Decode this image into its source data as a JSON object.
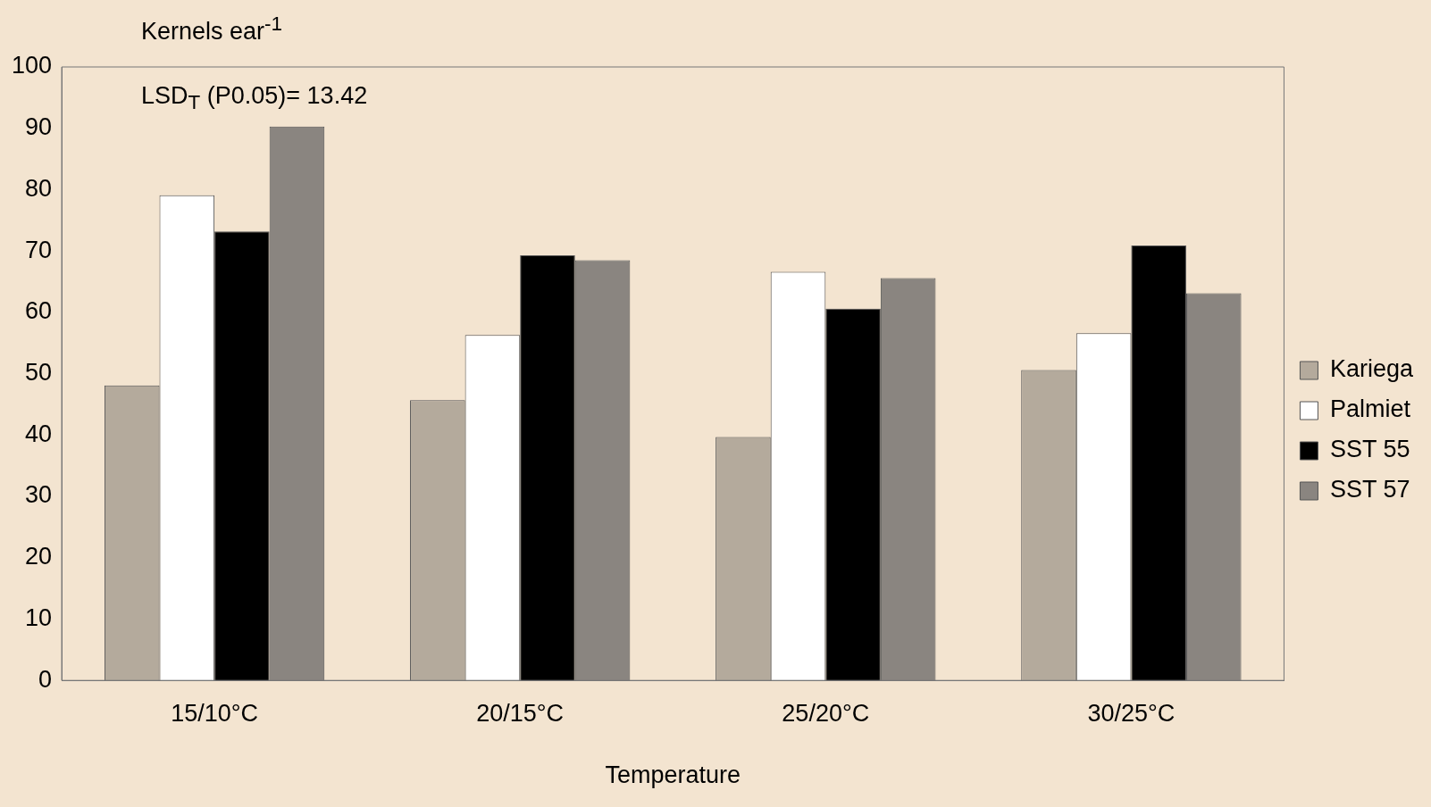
{
  "chart_data": {
    "type": "bar",
    "ylabel": "Kernels ear$^{-1}$",
    "xlabel": "Temperature",
    "categories": [
      "15/10°C",
      "20/15°C",
      "25/20°C",
      "30/25°C"
    ],
    "series": [
      {
        "name": "Kariega",
        "color": "#b4aa9c",
        "values": [
          48.1,
          45.7,
          39.7,
          50.6
        ]
      },
      {
        "name": "Palmiet",
        "color": "#ffffff",
        "values": [
          79.1,
          56.3,
          66.6,
          56.6
        ]
      },
      {
        "name": "SST 55",
        "color": "#000000",
        "values": [
          73.2,
          69.3,
          60.6,
          70.9
        ]
      },
      {
        "name": "SST 57",
        "color": "#8a8580",
        "values": [
          90.3,
          68.5,
          65.6,
          63.1
        ]
      }
    ],
    "ylim": [
      0,
      100
    ],
    "yticks": [
      0,
      10,
      20,
      30,
      40,
      50,
      60,
      70,
      80,
      90,
      100
    ],
    "grid": false,
    "legend": "right",
    "annotations": [
      "LSD$_{T}$ (P0.05)= 13.42"
    ]
  }
}
